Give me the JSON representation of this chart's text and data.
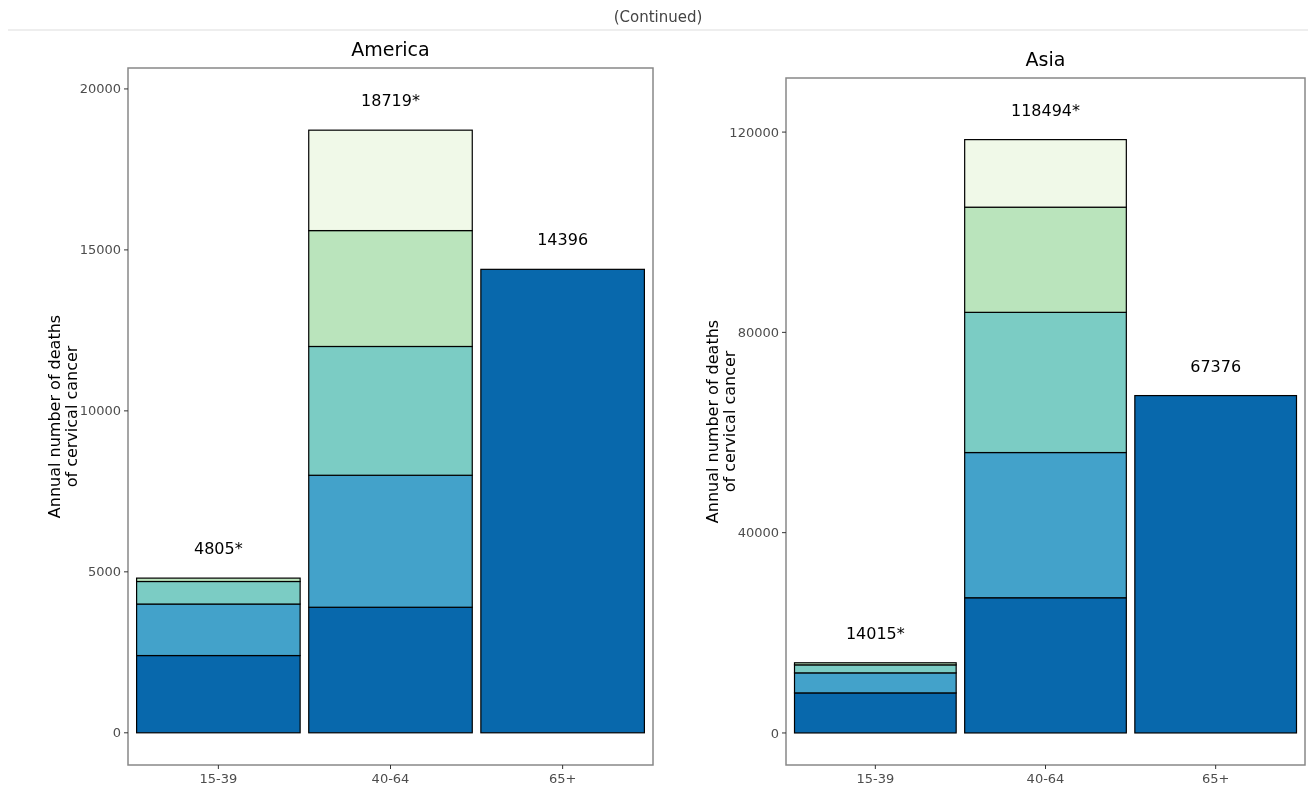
{
  "chart_data": [
    {
      "type": "bar",
      "title": "America",
      "ylabel": "Annual number of deaths\nof cervical cancer",
      "annotations": [
        "(Continued)"
      ],
      "categories": [
        "15-39",
        "40-64",
        "65+"
      ],
      "stacked": true,
      "grid": false,
      "ylim": [
        -1000,
        20650
      ],
      "yticks": [
        0,
        5000,
        10000,
        15000,
        20000
      ],
      "totals": [
        "4805*",
        "18719*",
        "14396"
      ],
      "series": [
        {
          "color": "#0868ac",
          "values": [
            2400,
            3900,
            14396
          ]
        },
        {
          "color": "#43a2ca",
          "values": [
            1600,
            4100,
            null
          ]
        },
        {
          "color": "#7bccc4",
          "values": [
            700,
            4000,
            null
          ]
        },
        {
          "color": "#bae4bc",
          "values": [
            105,
            3600,
            null
          ]
        },
        {
          "color": "#f0f9e8",
          "values": [
            null,
            3119,
            null
          ]
        }
      ]
    },
    {
      "type": "bar",
      "title": "Asia",
      "ylabel": "Annual number of deaths\nof cervical cancer",
      "categories": [
        "15-39",
        "40-64",
        "65+"
      ],
      "stacked": true,
      "grid": false,
      "ylim": [
        -6400,
        130800
      ],
      "yticks": [
        0,
        40000,
        80000,
        120000
      ],
      "totals": [
        "14015*",
        "118494*",
        "67376"
      ],
      "series": [
        {
          "color": "#0868ac",
          "values": [
            8000,
            27000,
            67376
          ]
        },
        {
          "color": "#43a2ca",
          "values": [
            4000,
            29000,
            null
          ]
        },
        {
          "color": "#7bccc4",
          "values": [
            1600,
            28000,
            null
          ]
        },
        {
          "color": "#bae4bc",
          "values": [
            415,
            21000,
            null
          ]
        },
        {
          "color": "#f0f9e8",
          "values": [
            null,
            13494,
            null
          ]
        }
      ]
    }
  ]
}
